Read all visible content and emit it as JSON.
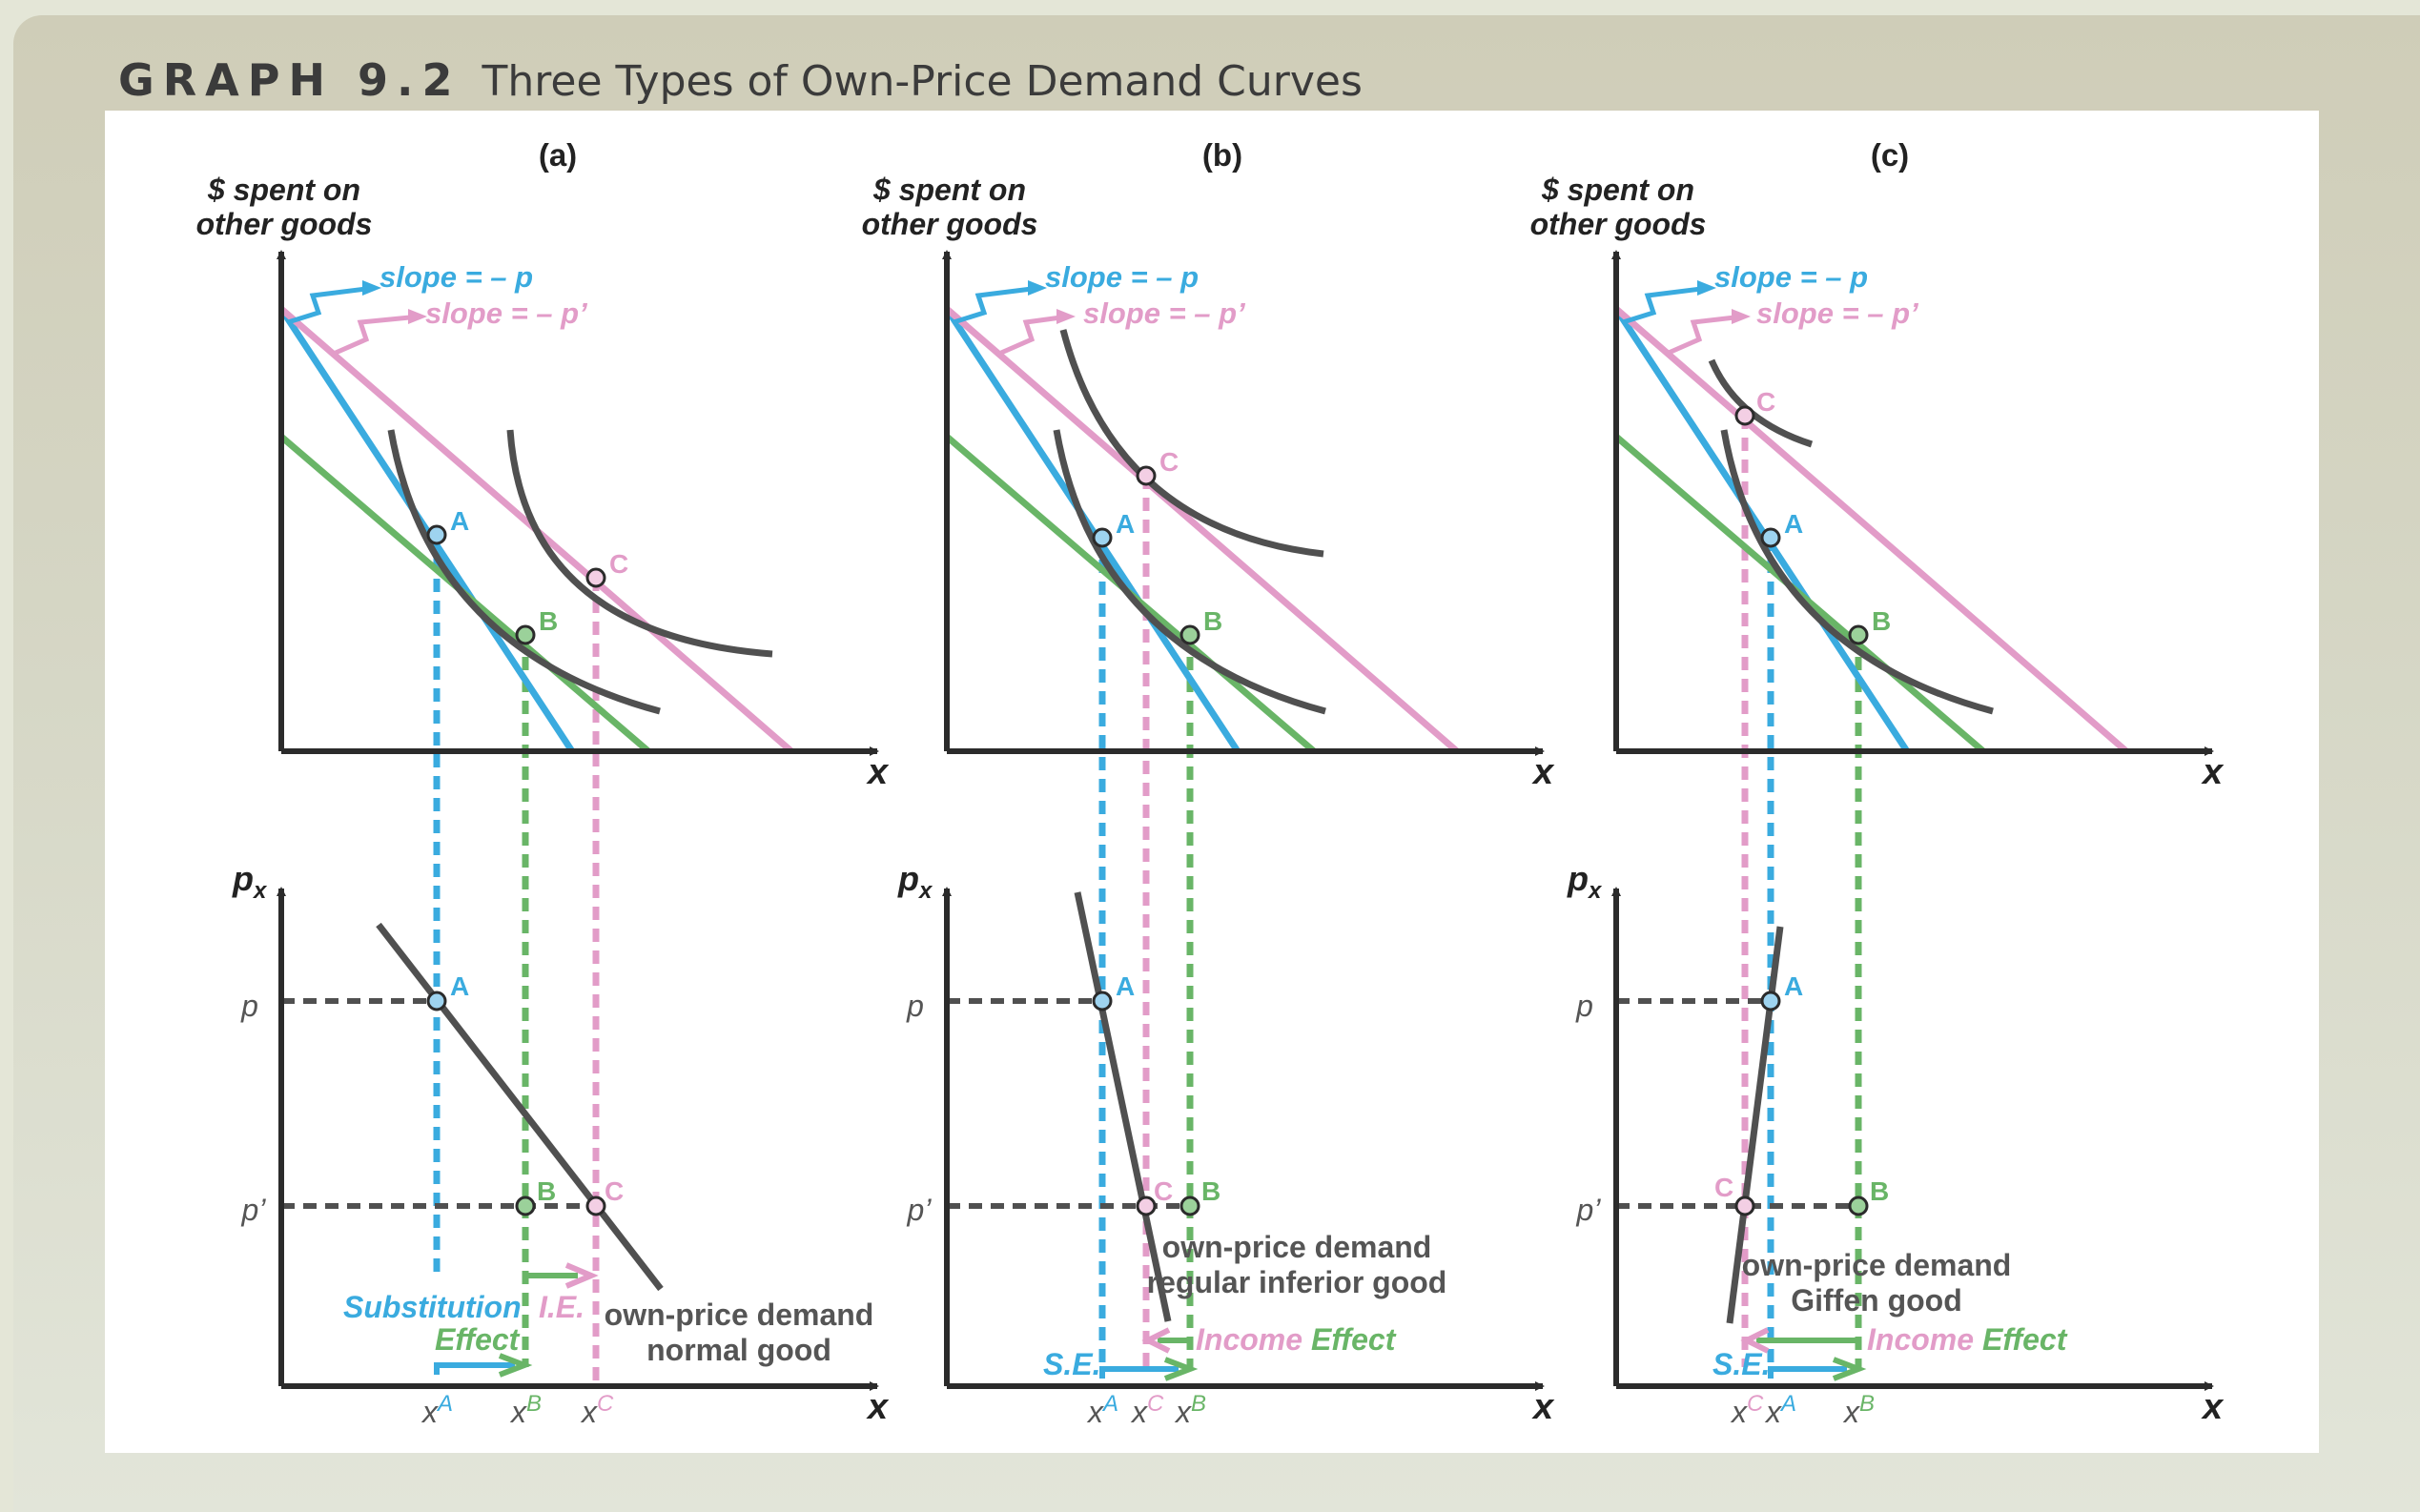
{
  "header": {
    "label": "GRAPH 9.2",
    "title": "Three Types of Own-Price Demand Curves"
  },
  "colors": {
    "blue": "#3aabdf",
    "pink": "#e29cc8",
    "green": "#69b567",
    "dark": "#505050",
    "axis": "#2b2b2b"
  },
  "common": {
    "top_y_label_line1": "$ spent on",
    "top_y_label_line2": "other goods",
    "x_axis_label": "x",
    "bottom_y_label": "p",
    "bottom_y_label_sub": "x",
    "slope_p": "slope = – p",
    "slope_pprime": "slope = – p’",
    "price_p": "p",
    "price_pprime": "p’",
    "tick_x": "x",
    "point_a": "A",
    "point_b": "B",
    "point_c": "C"
  },
  "panels": [
    {
      "id": "a",
      "label": "(a)",
      "demand_line1": "own-price demand",
      "demand_line2": "normal good",
      "se_line1": "Substitution",
      "se_line2": "Effect",
      "ie_label": "I.E."
    },
    {
      "id": "b",
      "label": "(b)",
      "demand_line1": "own-price demand",
      "demand_line2": "regular inferior good",
      "se_label": "S.E.",
      "income_word": "Income",
      "effect_word": "Effect"
    },
    {
      "id": "c",
      "label": "(c)",
      "demand_line1": "own-price demand",
      "demand_line2": "Giffen good",
      "se_label": "S.E.",
      "income_word": "Income",
      "effect_word": "Effect"
    }
  ]
}
